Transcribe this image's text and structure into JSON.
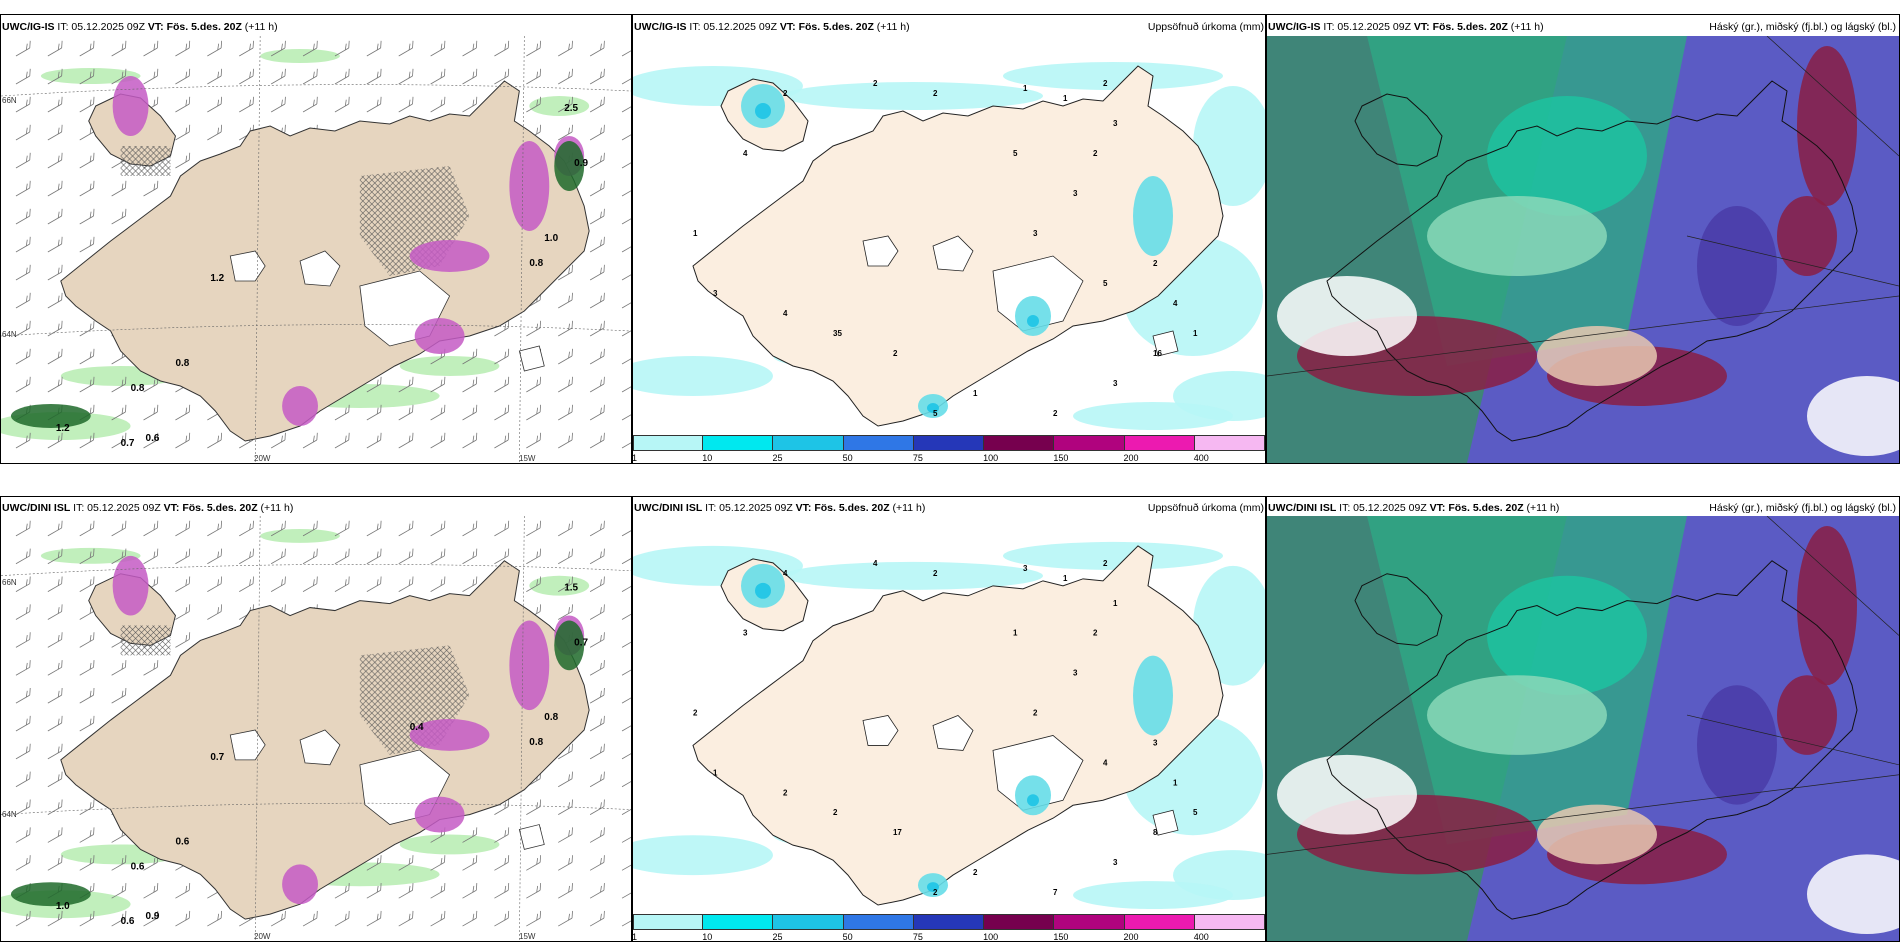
{
  "rows": [
    {
      "model": "UWC/IG-IS",
      "wind_panel": {
        "it_label": "IT: 05.12.2025 09Z",
        "vt_label": "VT: Fös. 5.des. 20Z",
        "lead": "(+11 h)"
      },
      "precip_panel": {
        "it_label": "IT: 05.12.2025 09Z",
        "vt_label": "VT: Fös. 5.des. 20Z",
        "lead": "(+11 h)",
        "right_title": "Uppsöfnuð úrkoma (mm)"
      },
      "cloud_panel": {
        "it_label": "IT: 05.12.2025 09Z",
        "vt_label": "VT: Fös. 5.des. 20Z",
        "lead": "(+11 h)",
        "right_title": "Háský (gr.), miðský (fj.bl.) og lágský (bl.)"
      },
      "wind_values": [
        "0.8",
        "0.8",
        "1.2",
        "0.7",
        "0.6",
        "0.9",
        "1.0",
        "0.8",
        "2.5",
        "1.2"
      ],
      "precip_values": [
        "2",
        "2",
        "2",
        "1",
        "1",
        "2",
        "3",
        "2",
        "3",
        "3",
        "5",
        "2",
        "4",
        "1",
        "16",
        "3",
        "2",
        "1",
        "5",
        "2",
        "35",
        "4",
        "3",
        "1",
        "4",
        "5"
      ]
    },
    {
      "model": "UWC/DINI ISL",
      "wind_panel": {
        "it_label": "IT: 05.12.2025 09Z",
        "vt_label": "VT: Fös. 5.des. 20Z",
        "lead": "(+11 h)"
      },
      "precip_panel": {
        "it_label": "IT: 05.12.2025 09Z",
        "vt_label": "VT: Fös. 5.des. 20Z",
        "lead": "(+11 h)",
        "right_title": "Uppsöfnuð úrkoma (mm)"
      },
      "cloud_panel": {
        "it_label": "IT: 05.12.2025 09Z",
        "vt_label": "VT: Fös. 5.des. 20Z",
        "lead": "(+11 h)",
        "right_title": "Háský (gr.), miðský (fj.bl.) og lágský (bl.)"
      },
      "wind_values": [
        "0.6",
        "0.6",
        "1.0",
        "0.6",
        "0.9",
        "0.7",
        "0.8",
        "0.8",
        "1.5",
        "0.7",
        "0.4"
      ],
      "precip_values": [
        "4",
        "4",
        "2",
        "3",
        "1",
        "2",
        "1",
        "2",
        "3",
        "2",
        "4",
        "3",
        "1",
        "5",
        "8",
        "3",
        "7",
        "2",
        "2",
        "17",
        "2",
        "2",
        "1",
        "2",
        "3",
        "1"
      ]
    }
  ],
  "colorbar": {
    "ticks": [
      "1",
      "10",
      "25",
      "50",
      "75",
      "100",
      "150",
      "200",
      "400"
    ],
    "colors": [
      "#b7f6f6",
      "#00e8ef",
      "#1ec4e6",
      "#2f77e6",
      "#2537b8",
      "#76004e",
      "#b0037e",
      "#ec1ab0",
      "#f6b8f2"
    ]
  },
  "grid_labels": {
    "lon": [
      "20W",
      "15W"
    ],
    "lat": [
      "66N",
      "64N"
    ]
  }
}
